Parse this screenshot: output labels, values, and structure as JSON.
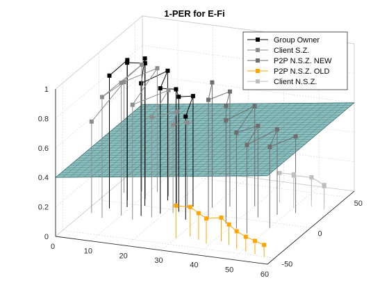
{
  "chart_data": {
    "type": "scatter",
    "projection": "3d",
    "title": "1-PER for E-Fi",
    "xlabel": "",
    "ylabel": "",
    "zlabel": "",
    "xlim": [
      0,
      60
    ],
    "ylim": [
      -60,
      60
    ],
    "zlim": [
      0,
      1
    ],
    "x_ticks": [
      "0",
      "10",
      "20",
      "30",
      "40",
      "50",
      "60"
    ],
    "y_ticks": [
      "-50",
      "0",
      "50"
    ],
    "z_ticks": [
      "0",
      "0.2",
      "0.4",
      "0.6",
      "0.8",
      "1"
    ],
    "grid": true,
    "legend_position": "top-right",
    "plane": {
      "z_at_x0": 0.4,
      "z_at_x60": 0.6,
      "color": "#2e8b8b"
    },
    "series": [
      {
        "name": "Group Owner",
        "color": "#000000",
        "marker": "square",
        "style": "stem",
        "points": [
          [
            5,
            -10,
            0.9
          ],
          [
            7,
            5,
            0.95
          ],
          [
            9,
            -5,
            0.98
          ],
          [
            11,
            10,
            0.92
          ],
          [
            13,
            0,
            1.0
          ],
          [
            15,
            -15,
            0.9
          ],
          [
            17,
            12,
            0.88
          ],
          [
            19,
            -8,
            0.85
          ],
          [
            21,
            4,
            0.8
          ],
          [
            23,
            -2,
            0.78
          ],
          [
            25,
            8,
            0.75
          ],
          [
            27,
            -12,
            0.7
          ]
        ]
      },
      {
        "name": "Client S.Z.",
        "color": "#8c8c8c",
        "marker": "square",
        "style": "stem",
        "points": [
          [
            2,
            -20,
            0.62
          ],
          [
            4,
            15,
            0.75
          ],
          [
            6,
            -25,
            0.82
          ],
          [
            8,
            20,
            0.86
          ],
          [
            10,
            -18,
            0.9
          ],
          [
            12,
            22,
            0.84
          ],
          [
            14,
            -22,
            0.78
          ],
          [
            16,
            18,
            0.72
          ],
          [
            18,
            -15,
            0.68
          ],
          [
            20,
            10,
            0.62
          ],
          [
            22,
            -5,
            0.6
          ],
          [
            24,
            5,
            0.58
          ]
        ]
      },
      {
        "name": "P2P N.S.Z. NEW",
        "color": "#6e6e6e",
        "marker": "square",
        "style": "stem",
        "points": [
          [
            30,
            10,
            0.85
          ],
          [
            32,
            -5,
            0.8
          ],
          [
            34,
            15,
            0.78
          ],
          [
            36,
            0,
            0.75
          ],
          [
            38,
            -10,
            0.7
          ],
          [
            40,
            20,
            0.68
          ],
          [
            42,
            -15,
            0.65
          ],
          [
            44,
            5,
            0.62
          ],
          [
            46,
            -20,
            0.6
          ],
          [
            48,
            12,
            0.58
          ],
          [
            50,
            -8,
            0.55
          ],
          [
            52,
            18,
            0.52
          ]
        ]
      },
      {
        "name": "P2P N.S.Z. OLD",
        "color": "#ffa500",
        "marker": "square",
        "style": "stem",
        "points": [
          [
            30,
            -40,
            0.22
          ],
          [
            33,
            -35,
            0.2
          ],
          [
            36,
            -38,
            0.18
          ],
          [
            39,
            -42,
            0.17
          ],
          [
            42,
            -36,
            0.16
          ],
          [
            45,
            -40,
            0.14
          ],
          [
            48,
            -44,
            0.12
          ],
          [
            51,
            -46,
            0.1
          ],
          [
            54,
            -48,
            0.09
          ],
          [
            57,
            -50,
            0.08
          ]
        ]
      },
      {
        "name": "Client N.S.Z.",
        "color": "#bfbfbf",
        "marker": "square",
        "style": "stem",
        "points": [
          [
            45,
            30,
            0.2
          ],
          [
            48,
            35,
            0.18
          ],
          [
            50,
            25,
            0.22
          ],
          [
            52,
            40,
            0.15
          ],
          [
            54,
            30,
            0.2
          ],
          [
            56,
            38,
            0.12
          ],
          [
            58,
            28,
            0.16
          ]
        ]
      }
    ]
  }
}
